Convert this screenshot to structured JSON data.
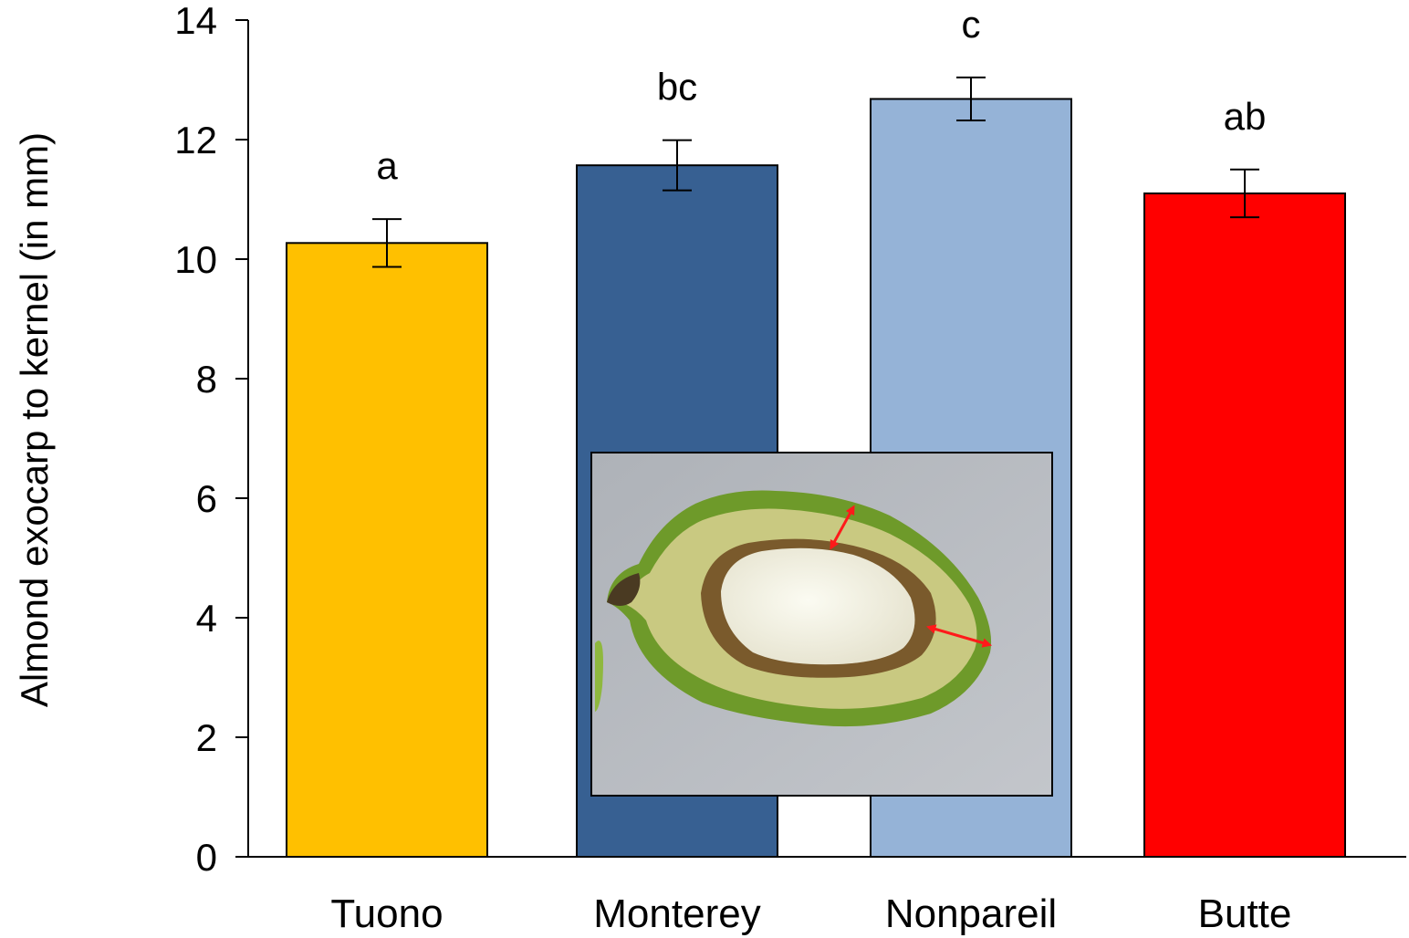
{
  "chart_data": {
    "type": "bar",
    "title": "",
    "xlabel": "",
    "ylabel": "Almond exocarp to kernel (in mm)",
    "ylim": [
      0,
      14
    ],
    "yticks": [
      0,
      2,
      4,
      6,
      8,
      10,
      12,
      14
    ],
    "grid": false,
    "legend": "none",
    "categories": [
      "Tuono",
      "Monterey",
      "Nonpareil",
      "Butte"
    ],
    "values": [
      10.27,
      11.57,
      12.68,
      11.1
    ],
    "error": [
      0.4,
      0.42,
      0.36,
      0.4
    ],
    "significance_letters": [
      "a",
      "bc",
      "c",
      "ab"
    ],
    "colors": [
      "#FFC000",
      "#376092",
      "#95B3D7",
      "#FF0000"
    ],
    "inset": "photo of a halved green almond fruit with red double-headed arrows marking exocarp-to-kernel distance"
  }
}
